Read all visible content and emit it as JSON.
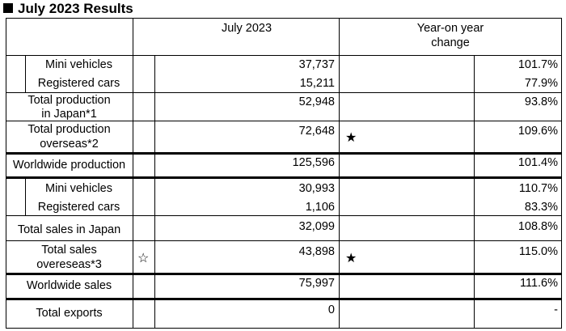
{
  "title": "July 2023 Results",
  "header": {
    "col1": "July 2023",
    "col2_line1": "Year-on year",
    "col2_line2": "change"
  },
  "rows": {
    "mini_prod": {
      "label": "Mini vehicles",
      "value": "37,737",
      "yoy": "101.7%"
    },
    "reg_prod": {
      "label": "Registered cars",
      "value": "15,211",
      "yoy": "77.9%"
    },
    "jp_prod": {
      "label1": "Total production",
      "label2": "in Japan*1",
      "value": "52,948",
      "yoy": "93.8%"
    },
    "os_prod": {
      "label1": "Total production",
      "label2": "overseas*2",
      "value": "72,648",
      "yoy": "109.6%",
      "mark": "★"
    },
    "ww_prod": {
      "label": "Worldwide production",
      "value": "125,596",
      "yoy": "101.4%"
    },
    "mini_sales": {
      "label": "Mini vehicles",
      "value": "30,993",
      "yoy": "110.7%"
    },
    "reg_sales": {
      "label": "Registered cars",
      "value": "1,106",
      "yoy": "83.3%"
    },
    "jp_sales": {
      "label": "Total sales in Japan",
      "value": "32,099",
      "yoy": "108.8%"
    },
    "os_sales": {
      "label1": "Total sales",
      "label2": "overeseas*3",
      "value": "43,898",
      "yoy": "115.0%",
      "note_mark": "☆",
      "mark": "★"
    },
    "ww_sales": {
      "label": "Worldwide sales",
      "value": "75,997",
      "yoy": "111.6%"
    },
    "exports": {
      "label": "Total exports",
      "value": "0",
      "yoy": "-"
    }
  }
}
